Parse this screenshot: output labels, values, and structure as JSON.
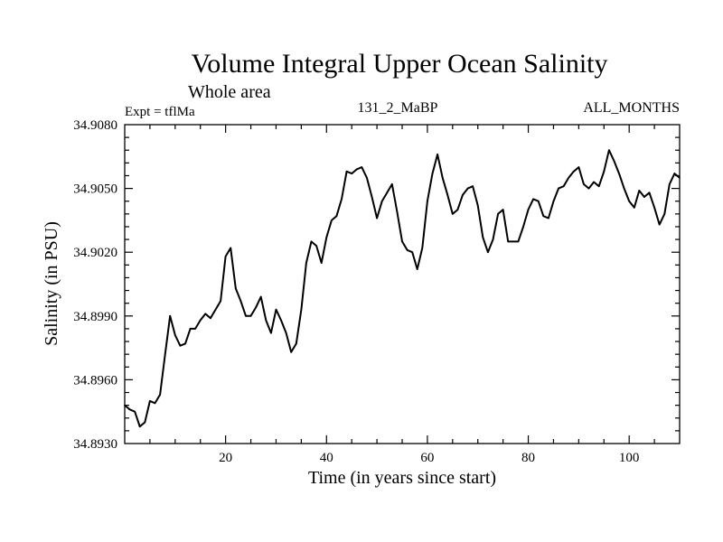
{
  "chart_data": {
    "type": "line",
    "title": "Volume Integral Upper Ocean Salinity",
    "subtitle": "Whole area",
    "left_label": "Expt = tflMa",
    "center_label": "131_2_MaBP",
    "right_label": "ALL_MONTHS",
    "xlabel": "Time (in years since start)",
    "ylabel": "Salinity (in PSU)",
    "xlim": [
      0,
      110
    ],
    "ylim": [
      34.893,
      34.908
    ],
    "x_ticks": [
      20,
      40,
      60,
      80,
      100
    ],
    "x_tick_labels": [
      "20",
      "40",
      "60",
      "80",
      "100"
    ],
    "y_ticks": [
      34.893,
      34.896,
      34.899,
      34.902,
      34.905,
      34.908
    ],
    "y_tick_labels": [
      "34.8930",
      "34.8960",
      "34.8990",
      "34.9020",
      "34.9050",
      "34.9080"
    ],
    "series": [
      {
        "name": "salinity",
        "color": "#000000",
        "x": [
          0,
          1,
          2,
          3,
          4,
          5,
          6,
          7,
          8,
          9,
          10,
          11,
          12,
          13,
          14,
          15,
          16,
          17,
          18,
          19,
          20,
          21,
          22,
          23,
          24,
          25,
          26,
          27,
          28,
          29,
          30,
          31,
          32,
          33,
          34,
          35,
          36,
          37,
          38,
          39,
          40,
          41,
          42,
          43,
          44,
          45,
          46,
          47,
          48,
          49,
          50,
          51,
          52,
          53,
          54,
          55,
          56,
          57,
          58,
          59,
          60,
          61,
          62,
          63,
          64,
          65,
          66,
          67,
          68,
          69,
          70,
          71,
          72,
          73,
          74,
          75,
          76,
          77,
          78,
          79,
          80,
          81,
          82,
          83,
          84,
          85,
          86,
          87,
          88,
          89,
          90,
          91,
          92,
          93,
          94,
          95,
          96,
          97,
          98,
          99,
          100,
          101,
          102,
          103,
          104,
          105,
          106,
          107,
          108,
          109,
          110
        ],
        "values": [
          34.8948,
          34.8946,
          34.8945,
          34.8938,
          34.894,
          34.895,
          34.8949,
          34.8953,
          34.8972,
          34.899,
          34.8981,
          34.8976,
          34.8977,
          34.8984,
          34.8984,
          34.8988,
          34.8991,
          34.8989,
          34.8993,
          34.8997,
          34.9018,
          34.9022,
          34.9003,
          34.8997,
          34.899,
          34.899,
          34.8994,
          34.8999,
          34.8988,
          34.8982,
          34.8993,
          34.8988,
          34.8982,
          34.8973,
          34.8977,
          34.8993,
          34.9015,
          34.9025,
          34.9023,
          34.9015,
          34.9027,
          34.9035,
          34.9037,
          34.9045,
          34.9058,
          34.9057,
          34.9059,
          34.906,
          34.9055,
          34.9046,
          34.9036,
          34.9044,
          34.9048,
          34.9052,
          34.9039,
          34.9025,
          34.9021,
          34.902,
          34.9012,
          34.9022,
          34.9044,
          34.9057,
          34.9066,
          34.9055,
          34.9047,
          34.9038,
          34.904,
          34.9047,
          34.905,
          34.9051,
          34.9042,
          34.9027,
          34.902,
          34.9026,
          34.9038,
          34.904,
          34.9025,
          34.9025,
          34.9025,
          34.9032,
          34.904,
          34.9045,
          34.9044,
          34.9037,
          34.9036,
          34.9044,
          34.905,
          34.9051,
          34.9055,
          34.9058,
          34.906,
          34.9052,
          34.905,
          34.9053,
          34.9051,
          34.9058,
          34.9068,
          34.9063,
          34.9057,
          34.905,
          34.9044,
          34.9041,
          34.9049,
          34.9046,
          34.9048,
          34.9041,
          34.9033,
          34.9038,
          34.9052,
          34.9057,
          34.9055
        ]
      }
    ]
  }
}
